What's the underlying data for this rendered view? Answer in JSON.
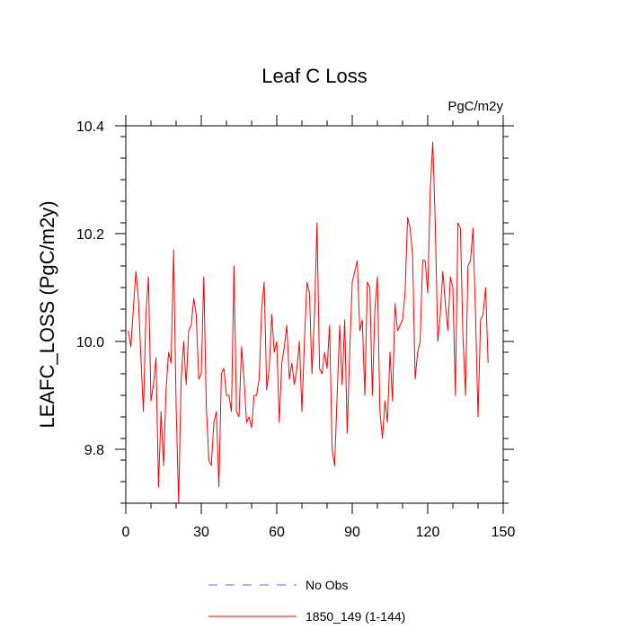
{
  "chart_data": {
    "type": "line",
    "title": "Leaf C Loss",
    "units_label": "PgC/m2y",
    "ylabel": "LEAFC_LOSS  (PgC/m2y)",
    "xlabel": "",
    "xlim": [
      0,
      150
    ],
    "ylim": [
      9.7,
      10.4
    ],
    "x_ticks": [
      0,
      30,
      60,
      90,
      120,
      150
    ],
    "x_tick_labels": [
      "0",
      "30",
      "60",
      "90",
      "120",
      "150"
    ],
    "y_ticks": [
      9.8,
      10.0,
      10.2,
      10.4
    ],
    "y_tick_labels": [
      "9.8",
      "10.0",
      "10.2",
      "10.4"
    ],
    "legend": [
      {
        "label": "No Obs",
        "color": "#6666ff",
        "style": "dashed"
      },
      {
        "label": "1850_149 (1-144)",
        "color": "#ff0000",
        "style": "solid"
      }
    ],
    "series": [
      {
        "name": "1850_149 (1-144)",
        "color": "#ff0000",
        "x_start": 1,
        "values": [
          10.02,
          9.99,
          10.06,
          10.13,
          10.08,
          9.97,
          9.87,
          10.05,
          10.12,
          9.89,
          9.92,
          9.97,
          9.73,
          9.87,
          9.77,
          9.91,
          9.98,
          9.96,
          10.17,
          9.88,
          9.7,
          9.93,
          10.0,
          9.92,
          10.02,
          10.03,
          10.08,
          10.05,
          9.93,
          9.94,
          10.12,
          9.88,
          9.78,
          9.77,
          9.85,
          9.87,
          9.73,
          9.94,
          9.95,
          9.9,
          9.9,
          9.87,
          10.14,
          9.87,
          9.86,
          9.99,
          9.93,
          9.85,
          9.86,
          9.84,
          9.9,
          9.9,
          9.93,
          10.06,
          10.11,
          9.91,
          9.95,
          10.05,
          9.98,
          10.0,
          9.85,
          9.96,
          9.99,
          10.03,
          9.93,
          9.96,
          9.92,
          9.95,
          10.0,
          9.87,
          10.0,
          10.11,
          10.09,
          9.94,
          10.05,
          10.22,
          9.95,
          9.94,
          9.98,
          9.95,
          10.03,
          9.8,
          9.77,
          9.9,
          10.03,
          9.92,
          10.04,
          9.83,
          9.98,
          10.11,
          10.13,
          10.15,
          10.02,
          10.04,
          9.9,
          10.11,
          10.1,
          9.9,
          10.06,
          10.12,
          9.87,
          9.82,
          9.89,
          9.85,
          9.98,
          9.89,
          10.07,
          10.02,
          10.03,
          10.04,
          10.09,
          10.23,
          10.21,
          10.16,
          9.93,
          9.98,
          10.0,
          10.15,
          10.15,
          10.09,
          10.28,
          10.37,
          10.22,
          10.0,
          10.05,
          10.13,
          10.07,
          10.02,
          10.12,
          10.1,
          9.9,
          10.22,
          10.21,
          10.01,
          9.9,
          10.14,
          10.15,
          10.21,
          10.05,
          9.86,
          10.04,
          10.05,
          10.1,
          9.96
        ]
      }
    ]
  }
}
